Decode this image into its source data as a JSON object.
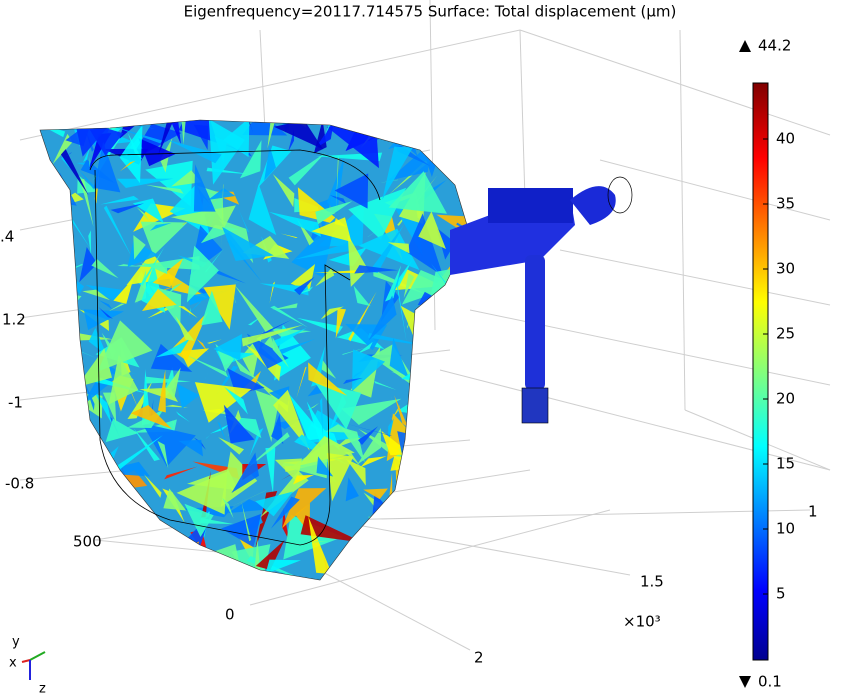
{
  "title": "Eigenfrequency=20117.714575   Surface: Total displacement (µm)",
  "colorbar": {
    "max": "44.2",
    "min": "0.1",
    "ticks": [
      "40",
      "35",
      "30",
      "25",
      "20",
      "15",
      "10",
      "5"
    ]
  },
  "axis_labels": {
    "left": [
      ".4",
      "1.2",
      "-1",
      "-0.8"
    ],
    "front": [
      "500",
      "0"
    ],
    "right": [
      "1.5",
      "2",
      "1"
    ],
    "multiplier": "×10³"
  },
  "triad": [
    "y",
    "x",
    "z"
  ]
}
